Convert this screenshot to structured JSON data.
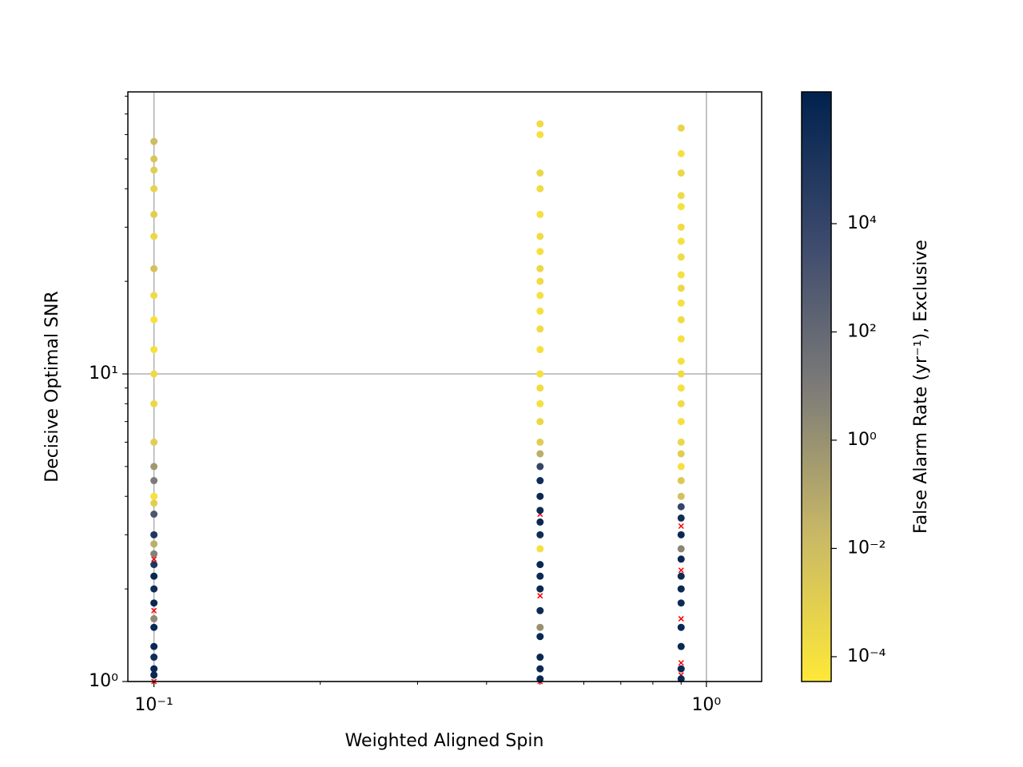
{
  "chart_data": {
    "type": "scatter",
    "xlabel": "Weighted Aligned Spin",
    "ylabel": "Decisive Optimal SNR",
    "xscale": "log",
    "yscale": "log",
    "grid": true,
    "xlim": [
      0.0897,
      1.259
    ],
    "ylim": [
      1,
      82.6
    ],
    "xticks": [
      {
        "value": 0.1,
        "label": "10⁻¹"
      },
      {
        "value": 1,
        "label": "10⁰"
      }
    ],
    "xminor": [
      0.2,
      0.3,
      0.4,
      0.5,
      0.6,
      0.7,
      0.8,
      0.9
    ],
    "yticks": [
      {
        "value": 1,
        "label": "10⁰"
      },
      {
        "value": 10,
        "label": "10¹"
      }
    ],
    "yminor": [
      2,
      3,
      4,
      5,
      6,
      7,
      8,
      9,
      20,
      30,
      40,
      50,
      60,
      70,
      80
    ],
    "colorbar": {
      "label": "False Alarm Rate (yr⁻¹), Exclusive",
      "scale": "log",
      "clim": [
        3.48e-05,
        2720000
      ],
      "ticks": [
        {
          "value": 0.0001,
          "label": "10⁻⁴"
        },
        {
          "value": 0.01,
          "label": "10⁻²"
        },
        {
          "value": 1,
          "label": "10⁰"
        },
        {
          "value": 100,
          "label": "10²"
        },
        {
          "value": 10000,
          "label": "10⁴"
        }
      ],
      "colormap": [
        "#fee838",
        "#c8b866",
        "#7c7b78",
        "#3b496c",
        "#00224e"
      ]
    },
    "missed": {
      "color": "#ff0000",
      "x": [
        0.1,
        0.1,
        0.1,
        0.1,
        0.1,
        0.1,
        0.5,
        0.5,
        0.5,
        0.5,
        0.9,
        0.9,
        0.9,
        0.9,
        0.9,
        0.9,
        0.9
      ],
      "values": [
        1.0,
        1.05,
        1.7,
        2.5,
        3,
        4,
        1.0,
        1.2,
        1.9,
        3.5,
        1.05,
        1.15,
        1.6,
        2.3,
        3.2,
        4.5,
        9
      ]
    },
    "found": {
      "x": [
        0.1,
        0.1,
        0.1,
        0.1,
        0.1,
        0.1,
        0.1,
        0.1,
        0.1,
        0.1,
        0.1,
        0.1,
        0.1,
        0.1,
        0.1,
        0.1,
        0.1,
        0.1,
        0.1,
        0.1,
        0.1,
        0.1,
        0.1,
        0.1,
        0.1,
        0.1,
        0.1,
        0.1,
        0.1,
        0.1,
        0.1,
        0.5,
        0.5,
        0.5,
        0.5,
        0.5,
        0.5,
        0.5,
        0.5,
        0.5,
        0.5,
        0.5,
        0.5,
        0.5,
        0.5,
        0.5,
        0.5,
        0.5,
        0.5,
        0.5,
        0.5,
        0.5,
        0.5,
        0.5,
        0.5,
        0.5,
        0.5,
        0.5,
        0.5,
        0.5,
        0.5,
        0.5,
        0.5,
        0.5,
        0.5,
        0.5,
        0.9,
        0.9,
        0.9,
        0.9,
        0.9,
        0.9,
        0.9,
        0.9,
        0.9,
        0.9,
        0.9,
        0.9,
        0.9,
        0.9,
        0.9,
        0.9,
        0.9,
        0.9,
        0.9,
        0.9,
        0.9,
        0.9,
        0.9,
        0.9,
        0.9,
        0.9,
        0.9,
        0.9,
        0.9,
        0.9,
        0.9,
        0.9,
        0.9,
        0.9,
        0.9
      ],
      "values": [
        57,
        50,
        46,
        40,
        33,
        28,
        22,
        18,
        15,
        12,
        10,
        8,
        6,
        5,
        4.5,
        4,
        3.8,
        3.5,
        3,
        2.8,
        2.6,
        2.4,
        2.2,
        2,
        1.8,
        1.6,
        1.5,
        1.3,
        1.2,
        1.1,
        1.05,
        65,
        60,
        45,
        40,
        33,
        28,
        25,
        22,
        20,
        18,
        16,
        14,
        12,
        10,
        9,
        8,
        7,
        6,
        5.5,
        5,
        4.5,
        4,
        3.6,
        3.3,
        3,
        2.7,
        2.4,
        2.2,
        2,
        1.7,
        1.5,
        1.4,
        1.2,
        1.1,
        1.02,
        63,
        52,
        45,
        38,
        35,
        30,
        27,
        24,
        21,
        19,
        17,
        15,
        13,
        11,
        10,
        9,
        8,
        7,
        6,
        5.5,
        5,
        4.5,
        4,
        3.7,
        3.4,
        3,
        2.7,
        2.5,
        2.2,
        2,
        1.8,
        1.5,
        1.3,
        1.1,
        1.02
      ],
      "far": [
        0.01,
        0.003,
        0.001,
        0.0005,
        0.001,
        0.0003,
        0.005,
        0.0002,
        0.0001,
        0.0001,
        0.0002,
        0.0003,
        0.001,
        0.5,
        10,
        0.0001,
        0.001,
        1000,
        100000,
        0.05,
        5,
        100000,
        1000000,
        500000,
        1000000,
        2,
        1000000,
        1000000,
        500000,
        1000000,
        1000000,
        0.0002,
        0.0001,
        0.0003,
        0.0002,
        0.0001,
        0.0002,
        0.0001,
        0.0003,
        0.0002,
        0.0001,
        0.0001,
        0.0002,
        0.0001,
        0.0001,
        0.0002,
        0.0001,
        0.0003,
        0.001,
        0.05,
        10000,
        500000,
        1000000,
        800000,
        1000000,
        500000,
        0.0001,
        1000000,
        900000,
        1000000,
        700000,
        1,
        1000000,
        1000000,
        800000,
        1000000,
        0.0005,
        0.0001,
        0.0003,
        0.0002,
        0.0001,
        0.0002,
        0.0001,
        0.0002,
        0.0001,
        0.0003,
        0.0001,
        0.0002,
        0.0001,
        0.0001,
        0.0002,
        0.0001,
        0.0002,
        0.0001,
        0.0003,
        0.001,
        0.0001,
        0.002,
        0.005,
        10000,
        500000,
        1000000,
        3,
        1000000,
        800000,
        1000000,
        600000,
        1000000,
        900000,
        1000000,
        1000000
      ]
    }
  }
}
